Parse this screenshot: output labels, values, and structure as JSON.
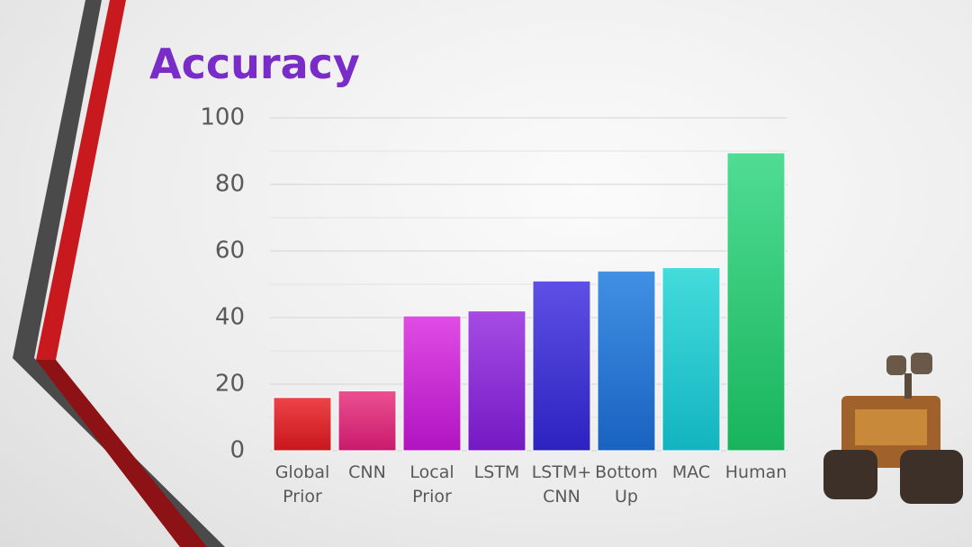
{
  "chart_data": {
    "type": "bar",
    "title": "Accuracy",
    "categories": [
      "Global Prior",
      "CNN",
      "Local Prior",
      "LSTM",
      "LSTM+ CNN",
      "Bottom Up",
      "MAC",
      "Human"
    ],
    "values": [
      16,
      18,
      40.5,
      42,
      51,
      54,
      55,
      89.5
    ],
    "colors": [
      [
        "#ec4448",
        "#c8161c"
      ],
      [
        "#ec5090",
        "#c81a6c"
      ],
      [
        "#e04ce4",
        "#b014c0"
      ],
      [
        "#a64ce4",
        "#7418c4"
      ],
      [
        "#5e50e4",
        "#2c22c0"
      ],
      [
        "#4090e4",
        "#1a62c0"
      ],
      [
        "#44dcdc",
        "#12b4c0"
      ],
      [
        "#50dc94",
        "#18b45c"
      ]
    ],
    "ylim": [
      0,
      100
    ],
    "yticks": [
      0,
      20,
      40,
      60,
      80,
      100
    ],
    "minor_yticks": [
      10,
      30,
      50,
      70,
      90
    ],
    "grid": true
  }
}
